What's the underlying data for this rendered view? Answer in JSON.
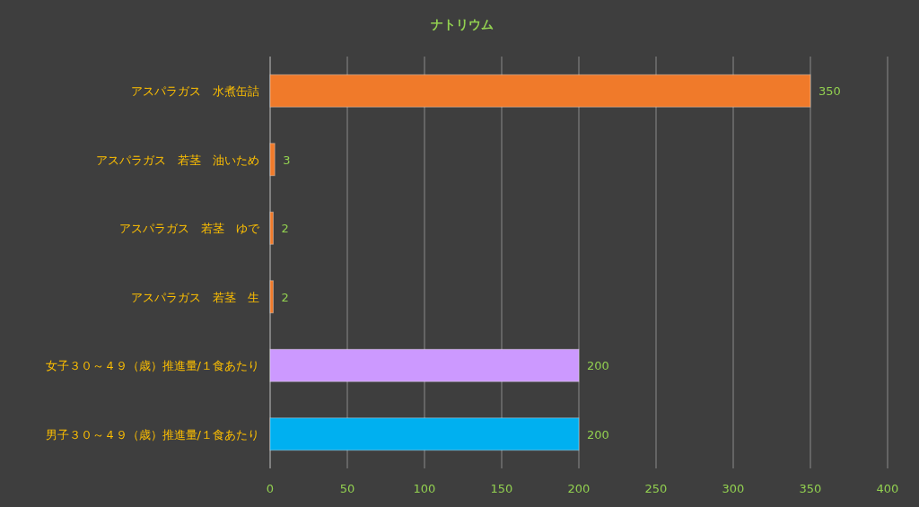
{
  "chart_data": {
    "type": "bar",
    "orientation": "horizontal",
    "title": "ナトリウム",
    "categories": [
      "アスパラガス　水煮缶詰",
      "アスパラガス　若茎　油いため",
      "アスパラガス　若茎　ゆで",
      "アスパラガス　若茎　生",
      "女子３０～４９（歳）推進量/１食あたり",
      "男子３０～４９（歳）推進量/１食あたり"
    ],
    "values": [
      350,
      3,
      2,
      2,
      200,
      200
    ],
    "colors": [
      "#f07a2a",
      "#f07a2a",
      "#f07a2a",
      "#f07a2a",
      "#cc99ff",
      "#00b0f0"
    ],
    "xlim": [
      0,
      400
    ],
    "xticks": [
      0,
      50,
      100,
      150,
      200,
      250,
      300,
      350,
      400
    ],
    "grid": "x",
    "data_labels": true
  }
}
